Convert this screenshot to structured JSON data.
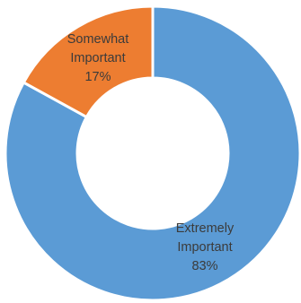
{
  "chart_data": {
    "type": "pie",
    "hole": true,
    "slices": [
      {
        "name": "Extremely Important",
        "value": 83,
        "label_lines": [
          "Extremely",
          "Important",
          "83%"
        ],
        "color": "#5b9bd5"
      },
      {
        "name": "Somewhat Important",
        "value": 17,
        "label_lines": [
          "Somewhat",
          "Important",
          "17%"
        ],
        "color": "#ed7d31"
      }
    ],
    "slice_border_color": "#ffffff",
    "start_angle_deg": 0,
    "direction": "clockwise"
  }
}
